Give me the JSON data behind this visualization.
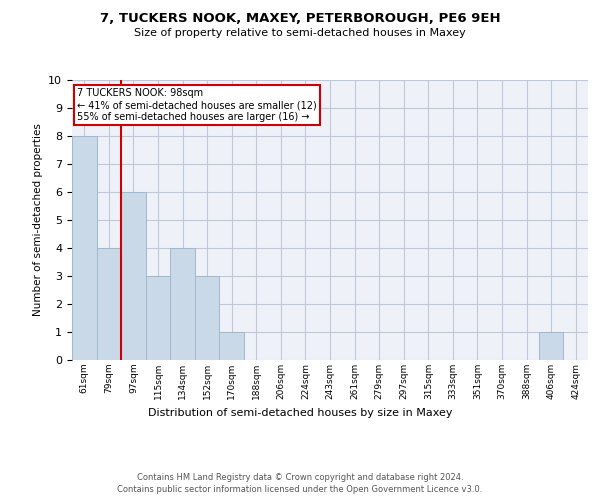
{
  "title1": "7, TUCKERS NOOK, MAXEY, PETERBOROUGH, PE6 9EH",
  "title2": "Size of property relative to semi-detached houses in Maxey",
  "xlabel": "Distribution of semi-detached houses by size in Maxey",
  "ylabel": "Number of semi-detached properties",
  "footer1": "Contains HM Land Registry data © Crown copyright and database right 2024.",
  "footer2": "Contains public sector information licensed under the Open Government Licence v3.0.",
  "categories": [
    "61sqm",
    "79sqm",
    "97sqm",
    "115sqm",
    "134sqm",
    "152sqm",
    "170sqm",
    "188sqm",
    "206sqm",
    "224sqm",
    "243sqm",
    "261sqm",
    "279sqm",
    "297sqm",
    "315sqm",
    "333sqm",
    "351sqm",
    "370sqm",
    "388sqm",
    "406sqm",
    "424sqm"
  ],
  "values": [
    8,
    4,
    6,
    3,
    4,
    3,
    1,
    0,
    0,
    0,
    0,
    0,
    0,
    0,
    0,
    0,
    0,
    0,
    0,
    1,
    0
  ],
  "bar_color": "#c9d9e8",
  "bar_edge_color": "#a0b8cc",
  "annotation_text": "7 TUCKERS NOOK: 98sqm\n← 41% of semi-detached houses are smaller (12)\n55% of semi-detached houses are larger (16) →",
  "vline_x": 1.5,
  "vline_color": "#cc0000",
  "box_color": "#cc0000",
  "ylim": [
    0,
    10
  ],
  "yticks": [
    0,
    1,
    2,
    3,
    4,
    5,
    6,
    7,
    8,
    9,
    10
  ],
  "grid_color": "#c0c8d8",
  "background_color": "#eef2f8",
  "title1_fontsize": 9.5,
  "title2_fontsize": 8.0,
  "ylabel_fontsize": 7.5,
  "xlabel_fontsize": 8.0,
  "footer_fontsize": 6.0,
  "tick_fontsize": 6.5,
  "ann_fontsize": 7.0
}
